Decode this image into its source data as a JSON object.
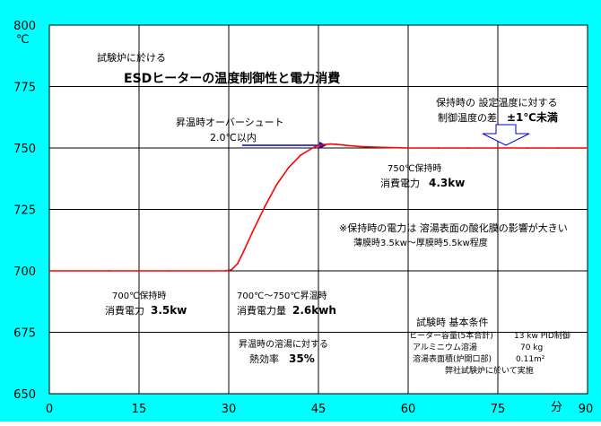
{
  "chart_data": {
    "type": "line",
    "title": "ESDヒーターの温度制御性と電力消費",
    "subtitle": "試験炉に於ける",
    "ylabel": "℃",
    "xlabel": "分",
    "xlim": [
      0,
      90
    ],
    "ylim": [
      650,
      800
    ],
    "x_ticks": [
      0,
      15,
      30,
      45,
      60,
      75,
      90
    ],
    "y_ticks": [
      650,
      675,
      700,
      725,
      750,
      775,
      800
    ],
    "grid": true,
    "series": [
      {
        "color": "#ff0000",
        "x": [
          0,
          10,
          20,
          29.5,
          30.5,
          31.5,
          32.5,
          34,
          36,
          38,
          40,
          42,
          44,
          45,
          46,
          47,
          48,
          50,
          52,
          55,
          58,
          60,
          65,
          70,
          75,
          80,
          85,
          90
        ],
        "y": [
          700,
          700,
          700,
          700,
          700.5,
          703,
          708,
          716,
          726,
          735,
          742,
          747,
          750,
          751,
          751.4,
          751.6,
          751.5,
          751,
          750.6,
          750.3,
          750.1,
          750,
          750,
          750,
          750,
          750,
          750,
          750
        ]
      }
    ],
    "annotations": {
      "overshoot": [
        "昇温時オーバーシュート",
        "2.0℃以内"
      ],
      "deviation": [
        "保持時の 設定温度に対する",
        "制御温度の差",
        "±1℃未満"
      ],
      "hold750": [
        "750℃保持時",
        "消費電力",
        "4.3kw"
      ],
      "note": [
        "※保持時の電力は 溶湯表面の酸化膜の影響が大きい",
        "薄膜時3.5kw〜厚膜時5.5kw程度"
      ],
      "hold700": [
        "700℃保持時",
        "消費電力",
        "3.5kw"
      ],
      "heating": [
        "700℃〜750℃昇温時",
        "消費電力量",
        "2.6kwh"
      ],
      "efficiency": [
        "昇温時の溶湯に対する",
        "熱効率",
        "35%"
      ],
      "conditions": [
        "試験時 基本条件",
        "ヒーター容量(5本合計)",
        "13 kw PID制御",
        "アルミニウム溶湯",
        "70 kg",
        "溶湯表面積(炉開口部)",
        "0.11m²",
        "弊社試験炉に於いて実施"
      ]
    }
  }
}
